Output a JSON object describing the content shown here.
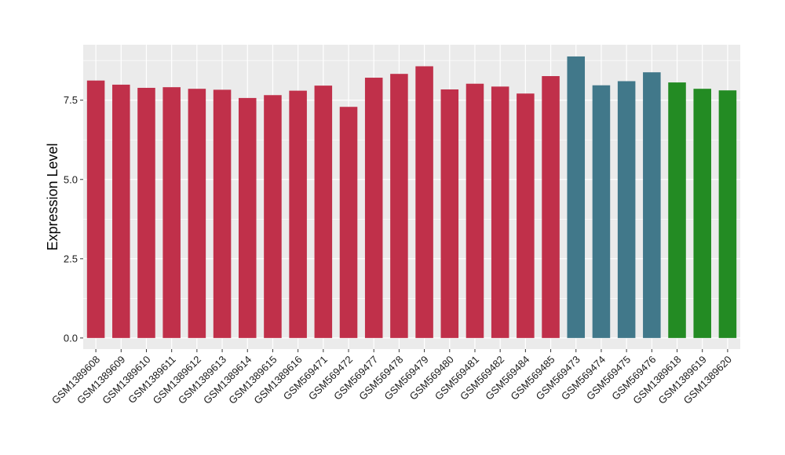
{
  "chart_data": {
    "type": "bar",
    "title": "",
    "xlabel": "",
    "ylabel": "Expression Level",
    "ylim": [
      -0.35,
      9.25
    ],
    "yticks": [
      0.0,
      2.5,
      5.0,
      7.5
    ],
    "ytick_labels": [
      "0.0",
      "2.5",
      "5.0",
      "7.5"
    ],
    "grid": true,
    "legend": "none",
    "panel_background": "#ebebeb",
    "grid_color": "#ffffff",
    "categories": [
      "GSM1389608",
      "GSM1389609",
      "GSM1389610",
      "GSM1389611",
      "GSM1389612",
      "GSM1389613",
      "GSM1389614",
      "GSM1389615",
      "GSM1389616",
      "GSM569471",
      "GSM569472",
      "GSM569477",
      "GSM569478",
      "GSM569479",
      "GSM569480",
      "GSM569481",
      "GSM569482",
      "GSM569484",
      "GSM569485",
      "GSM569473",
      "GSM569474",
      "GSM569475",
      "GSM569476",
      "GSM1389618",
      "GSM1389619",
      "GSM1389620"
    ],
    "values": [
      8.12,
      7.99,
      7.89,
      7.91,
      7.86,
      7.83,
      7.57,
      7.66,
      7.8,
      7.96,
      7.29,
      8.21,
      8.33,
      8.57,
      7.84,
      8.02,
      7.93,
      7.71,
      8.26,
      8.88,
      7.97,
      8.1,
      8.38,
      8.06,
      7.86,
      7.81
    ],
    "bar_colors": [
      "#c0304a",
      "#c0304a",
      "#c0304a",
      "#c0304a",
      "#c0304a",
      "#c0304a",
      "#c0304a",
      "#c0304a",
      "#c0304a",
      "#c0304a",
      "#c0304a",
      "#c0304a",
      "#c0304a",
      "#c0304a",
      "#c0304a",
      "#c0304a",
      "#c0304a",
      "#c0304a",
      "#c0304a",
      "#41788a",
      "#41788a",
      "#41788a",
      "#41788a",
      "#238b23",
      "#238b23",
      "#238b23"
    ]
  }
}
